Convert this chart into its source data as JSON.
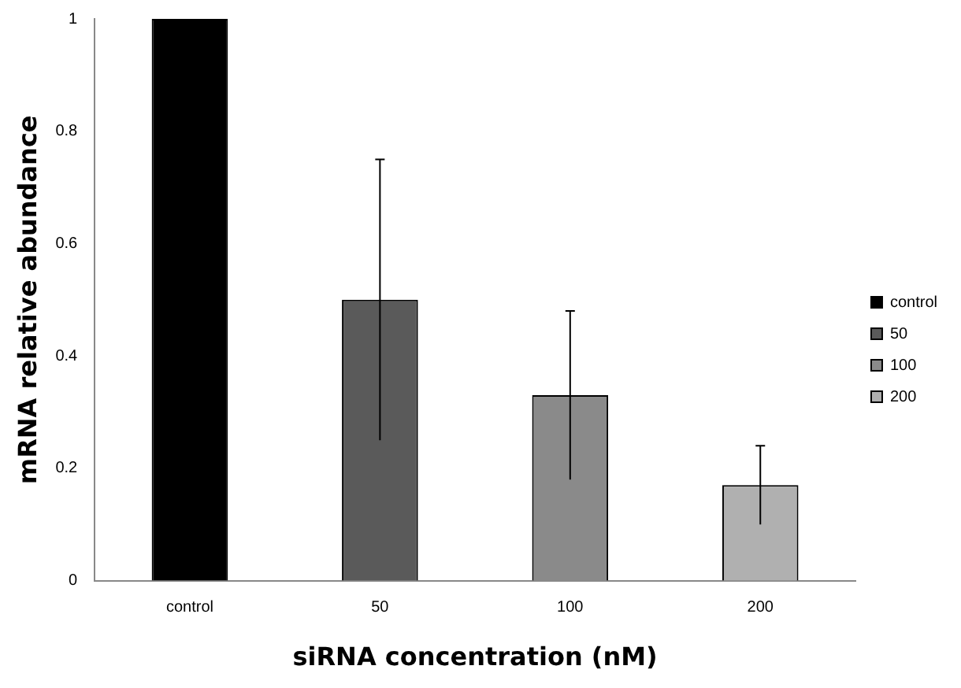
{
  "chart_data": {
    "type": "bar",
    "xlabel": "siRNA concentration (nM)",
    "ylabel": "mRNA relative abundance",
    "categories": [
      "control",
      "50",
      "100",
      "200"
    ],
    "series": [
      {
        "name": "control",
        "color": "#000000",
        "values": [
          1,
          null,
          null,
          null
        ]
      },
      {
        "name": "50",
        "color": "#5a5a5a",
        "values": [
          null,
          0.5,
          null,
          null
        ],
        "errors": [
          null,
          0.25,
          null,
          null
        ]
      },
      {
        "name": "100",
        "color": "#8a8a8a",
        "values": [
          null,
          null,
          0.33,
          null
        ],
        "errors": [
          null,
          null,
          0.15,
          null
        ]
      },
      {
        "name": "200",
        "color": "#b0b0b0",
        "values": [
          null,
          null,
          null,
          0.17
        ],
        "errors": [
          null,
          null,
          null,
          0.07
        ]
      }
    ],
    "ylim": [
      0,
      1
    ],
    "yticks": [
      0,
      0.2,
      0.4,
      0.6,
      0.8,
      1
    ],
    "grid": false,
    "legend": "right"
  }
}
